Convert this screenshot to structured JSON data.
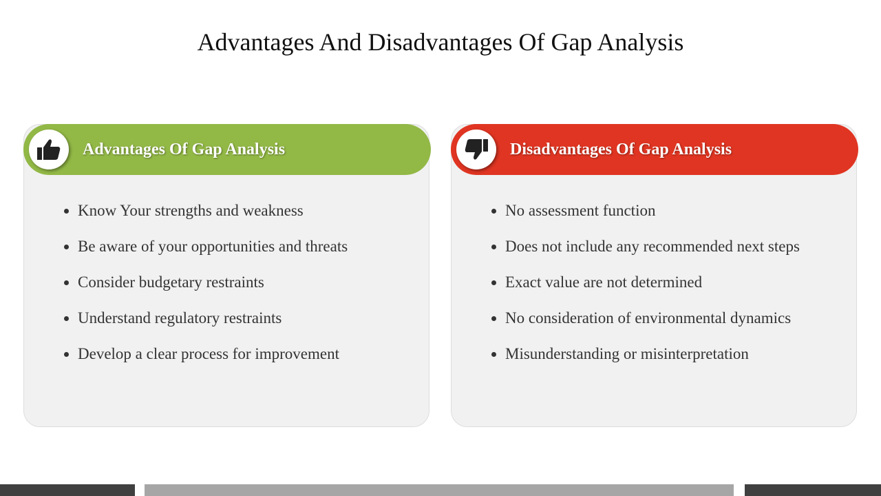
{
  "title": "Advantages And Disadvantages Of Gap Analysis",
  "panels": [
    {
      "heading": "Advantages Of Gap Analysis",
      "items": [
        "Know Your strengths and weakness",
        "Be aware of your opportunities and threats",
        "Consider budgetary restraints",
        "Understand regulatory restraints",
        "Develop a clear process for improvement"
      ]
    },
    {
      "heading": "Disadvantages Of Gap Analysis",
      "items": [
        "No assessment function",
        "Does not include any recommended next steps",
        "Exact value are not determined",
        "No consideration of environmental dynamics",
        "Misunderstanding or misinterpretation"
      ]
    }
  ]
}
